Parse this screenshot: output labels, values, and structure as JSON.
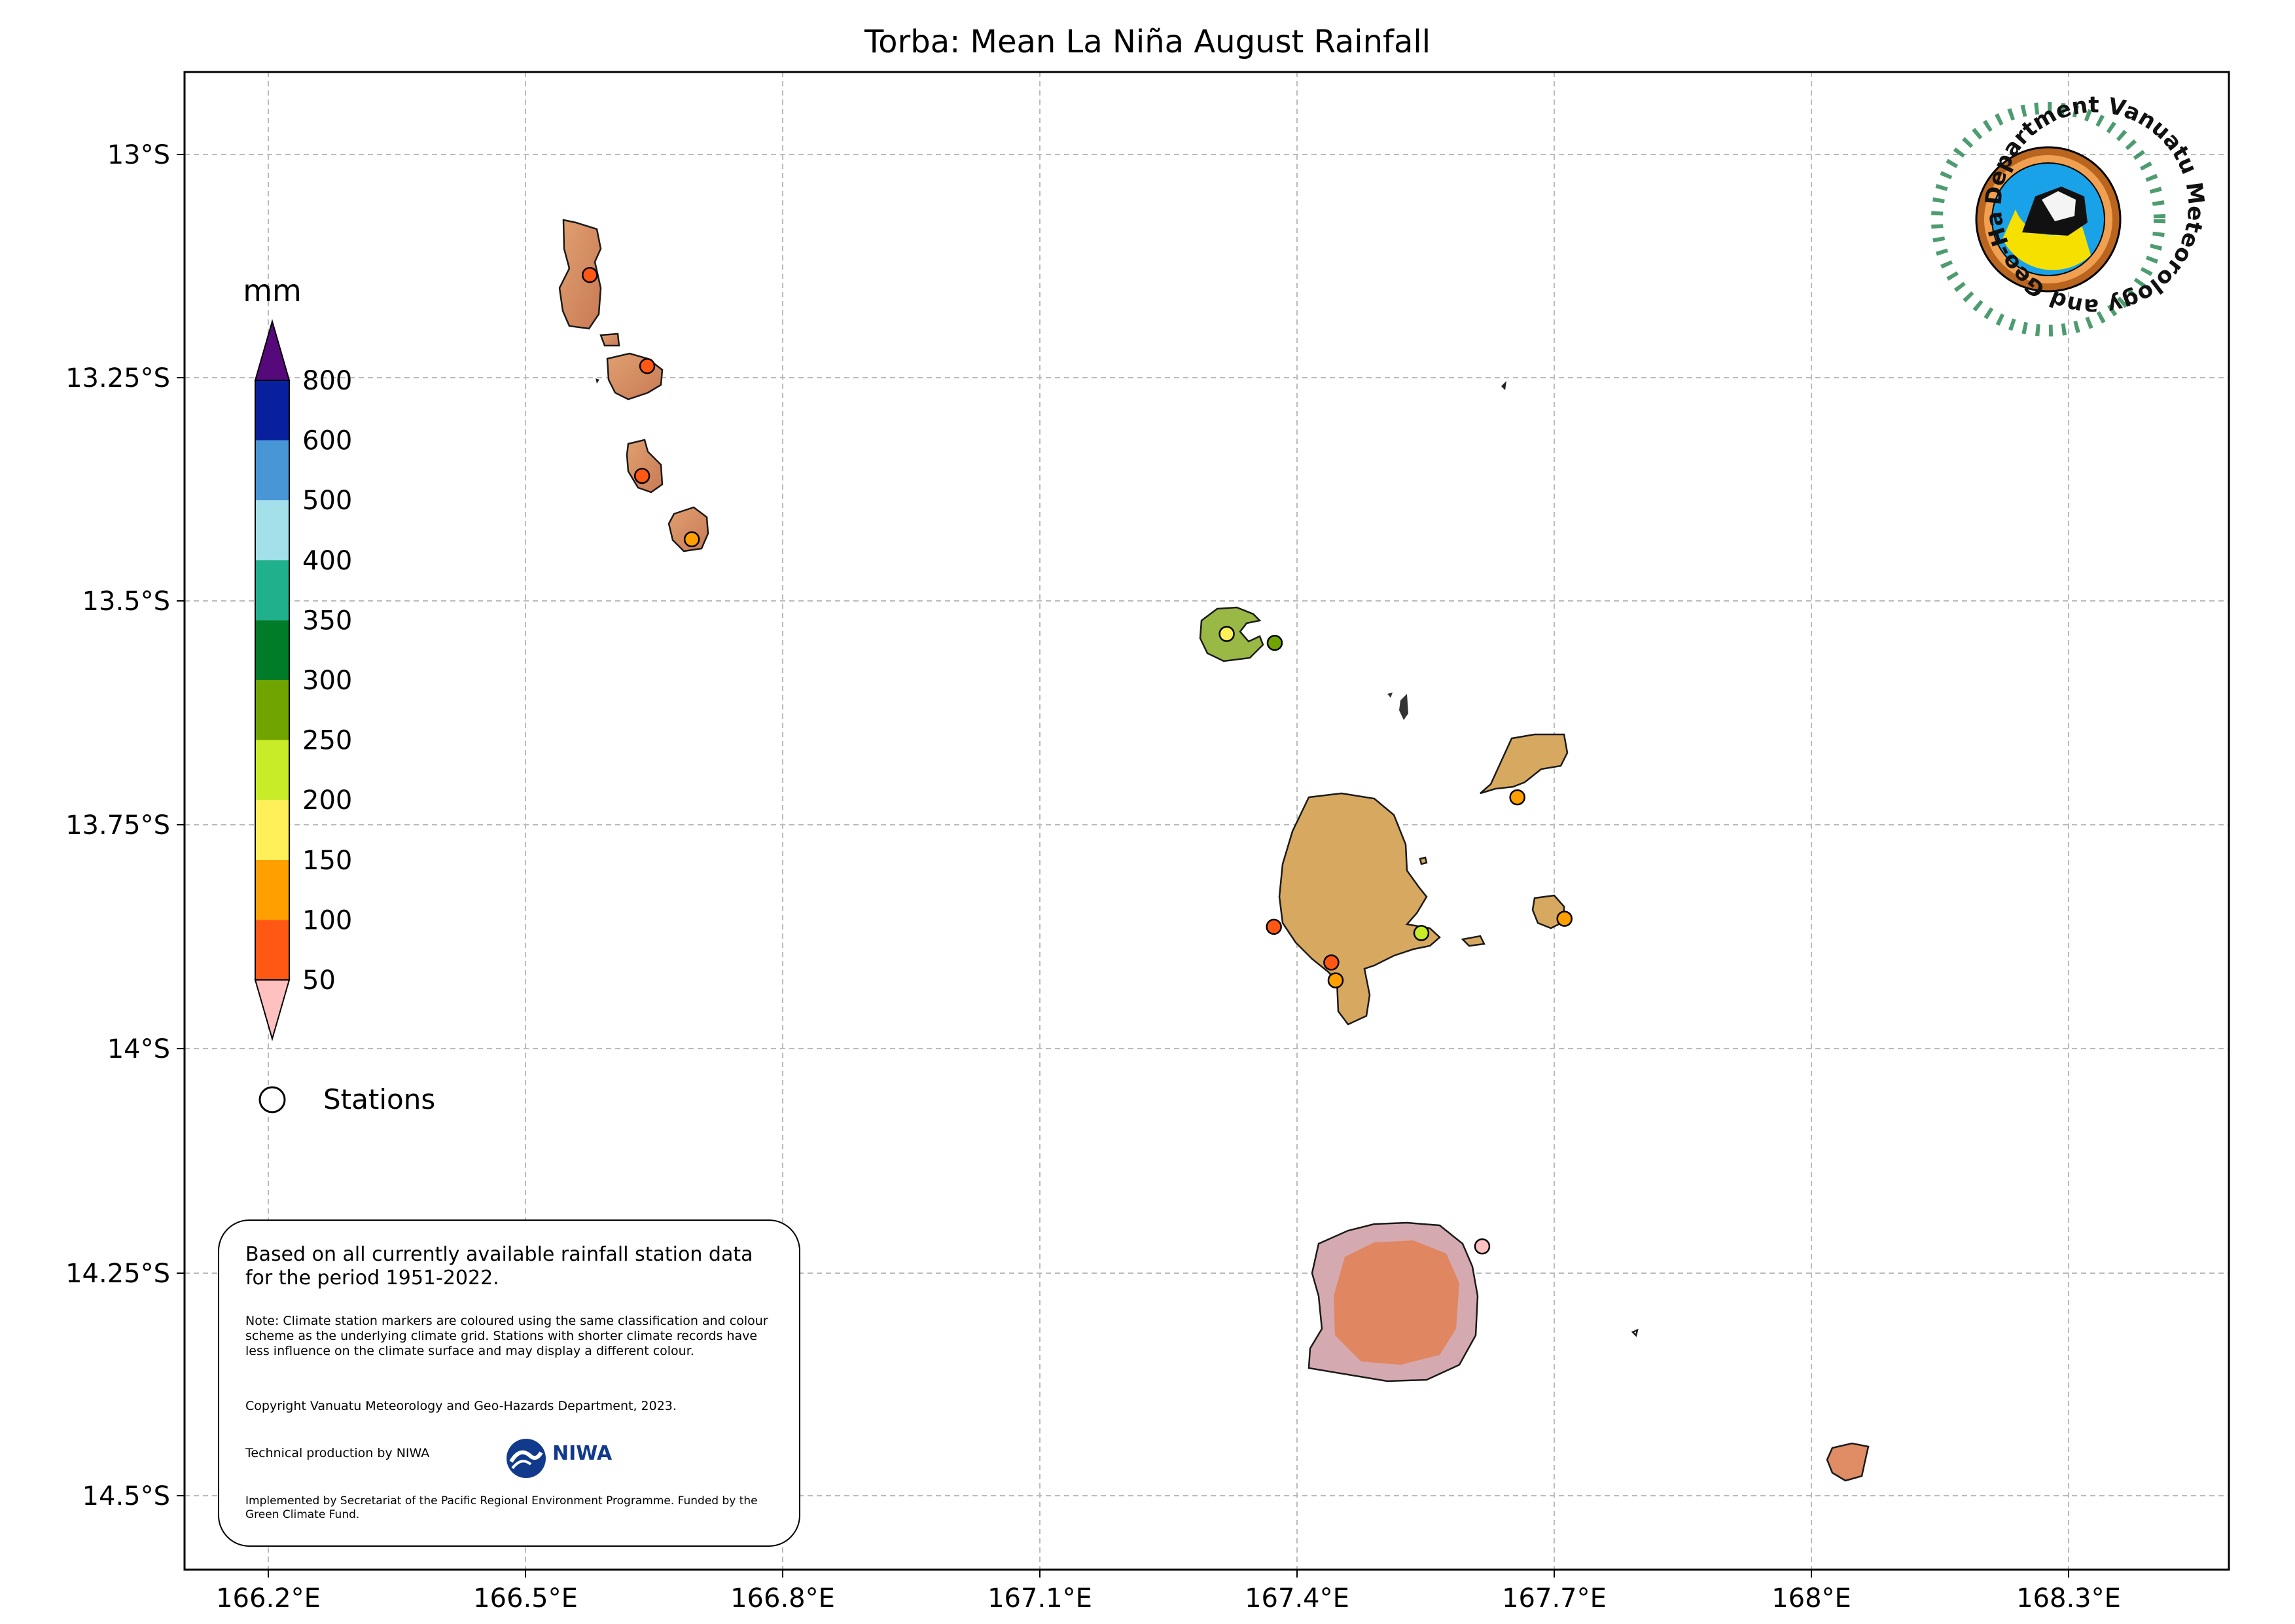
{
  "title": "Torba: Mean La Niña August Rainfall",
  "legend": {
    "unit": "mm",
    "stations_label": "Stations",
    "levels": [
      "50",
      "100",
      "150",
      "200",
      "250",
      "300",
      "350",
      "400",
      "500",
      "600",
      "800"
    ],
    "colors": [
      "#ff5714",
      "#ffa000",
      "#fff05a",
      "#c8ec28",
      "#70a400",
      "#007c28",
      "#20b08c",
      "#a4e0ea",
      "#4896d6",
      "#08209e"
    ],
    "under_color": "#ffc0c0",
    "over_color": "#56097a"
  },
  "axes": {
    "x_ticks": [
      "166.2°E",
      "166.5°E",
      "166.8°E",
      "167.1°E",
      "167.4°E",
      "167.7°E",
      "168°E",
      "168.3°E"
    ],
    "y_ticks": [
      "13°S",
      "13.25°S",
      "13.5°S",
      "13.75°S",
      "14°S",
      "14.25°S",
      "14.5°S"
    ],
    "grid": true,
    "lon_range": [
      166.1,
      168.47
    ],
    "lat_range": [
      -12.91,
      -14.59
    ]
  },
  "stations": [
    {
      "lon": 166.575,
      "lat": -13.135,
      "rainfall_mm": 80
    },
    {
      "lon": 166.642,
      "lat": -13.237,
      "rainfall_mm": 80
    },
    {
      "lon": 166.636,
      "lat": -13.36,
      "rainfall_mm": 80
    },
    {
      "lon": 166.694,
      "lat": -13.431,
      "rainfall_mm": 120
    },
    {
      "lon": 167.318,
      "lat": -13.537,
      "rainfall_mm": 175
    },
    {
      "lon": 167.374,
      "lat": -13.547,
      "rainfall_mm": 270
    },
    {
      "lon": 167.657,
      "lat": -13.72,
      "rainfall_mm": 120
    },
    {
      "lon": 167.373,
      "lat": -13.865,
      "rainfall_mm": 80
    },
    {
      "lon": 167.545,
      "lat": -13.872,
      "rainfall_mm": 210
    },
    {
      "lon": 167.44,
      "lat": -13.905,
      "rainfall_mm": 80
    },
    {
      "lon": 167.445,
      "lat": -13.925,
      "rainfall_mm": 120
    },
    {
      "lon": 167.712,
      "lat": -13.856,
      "rainfall_mm": 120
    },
    {
      "lon": 167.616,
      "lat": -14.223,
      "rainfall_mm": 40
    }
  ],
  "notes": {
    "main": "Based on all currently available rainfall station data for the period 1951-2022.",
    "climate_note": "Note: Climate station markers are coloured using the same classification and colour scheme as the underlying climate grid. Stations with shorter climate records have less influence on the climate surface and may display a different colour.",
    "copyright": "Copyright Vanuatu Meteorology and Geo-Hazards Department, 2023.",
    "technical": "Technical production by NIWA",
    "niwa_name": "NIWA",
    "implemented": "Implemented by Secretariat of the Pacific Regional Environment Programme. Funded by the Green Climate Fund."
  },
  "logo": {
    "text": "Department Vanuatu Meteorology and Geo-Hazards"
  }
}
